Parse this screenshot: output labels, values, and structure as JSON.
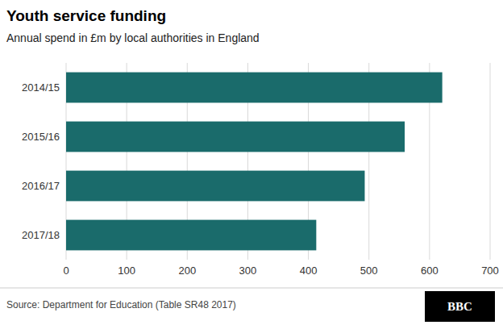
{
  "chart_data": {
    "type": "bar",
    "orientation": "horizontal",
    "title": "Youth service funding",
    "subtitle": "Annual spend in £m by local authorities in England",
    "categories": [
      "2014/15",
      "2015/16",
      "2016/17",
      "2017/18"
    ],
    "values": [
      621,
      559,
      493,
      413
    ],
    "color": "#1a6b6b",
    "xlim": [
      0,
      700
    ],
    "xticks": [
      0,
      100,
      200,
      300,
      400,
      500,
      600,
      700
    ],
    "grid": true,
    "annotations": [
      "Source: Department for Education (Table SR48 2017)",
      "BBC"
    ]
  }
}
